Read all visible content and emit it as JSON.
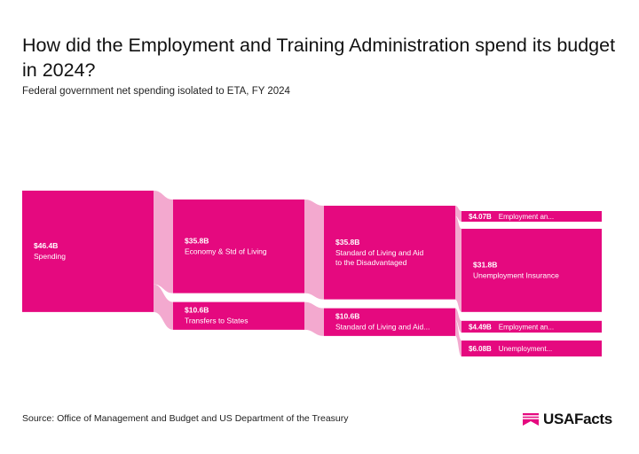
{
  "title": "How did the Employment and Training Administration spend its budget in 2024?",
  "subtitle": "Federal government net spending isolated to ETA, FY 2024",
  "source": "Source: Office of Management and Budget and US Department of the Treasury",
  "brand": "USAFacts",
  "colors": {
    "node": "#e5097f",
    "link": "#f3a9cf",
    "text": "#111111"
  },
  "chart_data": {
    "type": "sankey",
    "unit": "billions USD",
    "nodes": [
      {
        "id": "spending",
        "column": 0,
        "value": 46.4,
        "value_label": "$46.4B",
        "label": "Spending"
      },
      {
        "id": "econ",
        "column": 1,
        "value": 35.8,
        "value_label": "$35.8B",
        "label": "Economy & Std of Living"
      },
      {
        "id": "transfers",
        "column": 1,
        "value": 10.6,
        "value_label": "$10.6B",
        "label": "Transfers to States"
      },
      {
        "id": "stdliving",
        "column": 2,
        "value": 35.8,
        "value_label": "$35.8B",
        "label": "Standard of Living and Aid to the Disadvantaged"
      },
      {
        "id": "stdliving2",
        "column": 2,
        "value": 10.6,
        "value_label": "$10.6B",
        "label": "Standard of Living and Aid..."
      },
      {
        "id": "emp1",
        "column": 3,
        "value": 4.07,
        "value_label": "$4.07B",
        "label": "Employment an..."
      },
      {
        "id": "ui1",
        "column": 3,
        "value": 31.8,
        "value_label": "$31.8B",
        "label": "Unemployment Insurance"
      },
      {
        "id": "emp2",
        "column": 3,
        "value": 4.49,
        "value_label": "$4.49B",
        "label": "Employment an..."
      },
      {
        "id": "ui2",
        "column": 3,
        "value": 6.08,
        "value_label": "$6.08B",
        "label": "Unemployment..."
      }
    ],
    "links": [
      {
        "source": "spending",
        "target": "econ",
        "value": 35.8
      },
      {
        "source": "spending",
        "target": "transfers",
        "value": 10.6
      },
      {
        "source": "econ",
        "target": "stdliving",
        "value": 35.8
      },
      {
        "source": "transfers",
        "target": "stdliving2",
        "value": 10.6
      },
      {
        "source": "stdliving",
        "target": "emp1",
        "value": 4.07
      },
      {
        "source": "stdliving",
        "target": "ui1",
        "value": 31.8
      },
      {
        "source": "stdliving2",
        "target": "emp2",
        "value": 4.49
      },
      {
        "source": "stdliving2",
        "target": "ui2",
        "value": 6.08
      }
    ]
  }
}
